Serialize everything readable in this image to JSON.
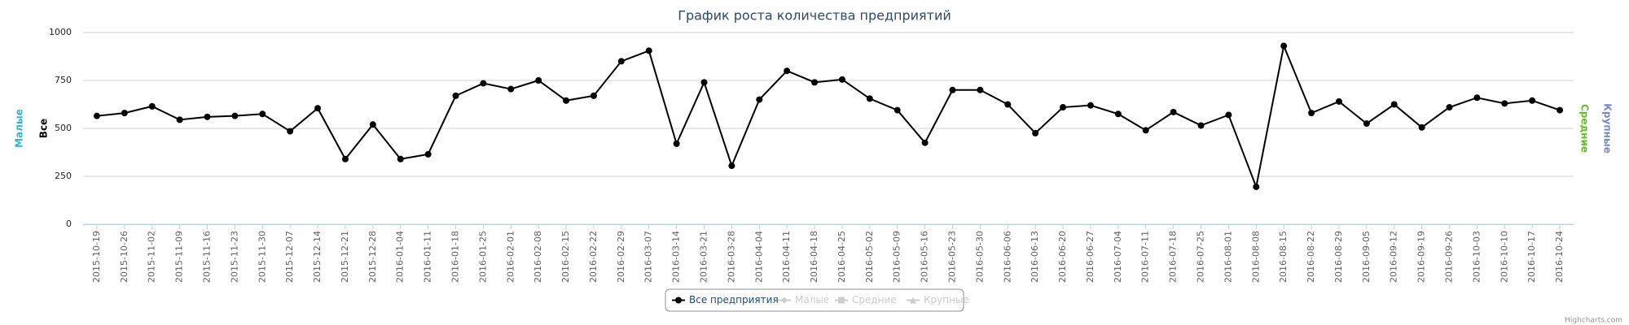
{
  "chart_data": {
    "type": "line",
    "title": "График роста количества предприятий",
    "categories": [
      "2015-10-19",
      "2015-10-26",
      "2015-11-02",
      "2015-11-09",
      "2015-11-16",
      "2015-11-23",
      "2015-11-30",
      "2015-12-07",
      "2015-12-14",
      "2015-12-21",
      "2015-12-28",
      "2016-01-04",
      "2016-01-11",
      "2016-01-18",
      "2016-01-25",
      "2016-02-01",
      "2016-02-08",
      "2016-02-15",
      "2016-02-22",
      "2016-02-29",
      "2016-03-07",
      "2016-03-14",
      "2016-03-21",
      "2016-03-28",
      "2016-04-04",
      "2016-04-11",
      "2016-04-18",
      "2016-04-25",
      "2016-05-02",
      "2016-05-09",
      "2016-05-16",
      "2016-05-23",
      "2016-05-30",
      "2016-06-06",
      "2016-06-13",
      "2016-06-20",
      "2016-06-27",
      "2016-07-04",
      "2016-07-11",
      "2016-07-18",
      "2016-07-25",
      "2016-08-01",
      "2016-08-08",
      "2016-08-15",
      "2016-08-22",
      "2016-08-29",
      "2016-09-05",
      "2016-09-12",
      "2016-09-19",
      "2016-09-26",
      "2016-10-03",
      "2016-10-10",
      "2016-10-17",
      "2016-10-24"
    ],
    "series": [
      {
        "name": "Все предприятия",
        "color": "#000000",
        "visible": true,
        "marker": "circle",
        "values": [
          565,
          580,
          615,
          545,
          560,
          565,
          575,
          485,
          605,
          340,
          520,
          340,
          365,
          670,
          735,
          705,
          750,
          645,
          670,
          850,
          905,
          420,
          740,
          305,
          650,
          800,
          740,
          755,
          655,
          595,
          425,
          700,
          700,
          625,
          475,
          610,
          620,
          575,
          490,
          585,
          515,
          570,
          195,
          930,
          580,
          640,
          525,
          625,
          505,
          610,
          660,
          630,
          645,
          595
        ]
      },
      {
        "name": "Малые",
        "color": "#2fb5d6",
        "visible": false,
        "marker": "diamond"
      },
      {
        "name": "Средние",
        "color": "#66bb22",
        "visible": false,
        "marker": "square"
      },
      {
        "name": "Крупные",
        "color": "#7788cc",
        "visible": false,
        "marker": "triangle"
      }
    ],
    "y_axes_left": [
      {
        "title": "Малые",
        "color": "#2fb5d6"
      },
      {
        "title": "Все",
        "color": "#000000"
      }
    ],
    "y_axes_right": [
      {
        "title": "Средние",
        "color": "#66bb22"
      },
      {
        "title": "Крупные",
        "color": "#7788cc"
      }
    ],
    "ylim": [
      0,
      1000
    ],
    "yticks": [
      0,
      250,
      500,
      750,
      1000
    ],
    "grid": true,
    "legend": "bottom",
    "credits": "Highcharts.com"
  }
}
